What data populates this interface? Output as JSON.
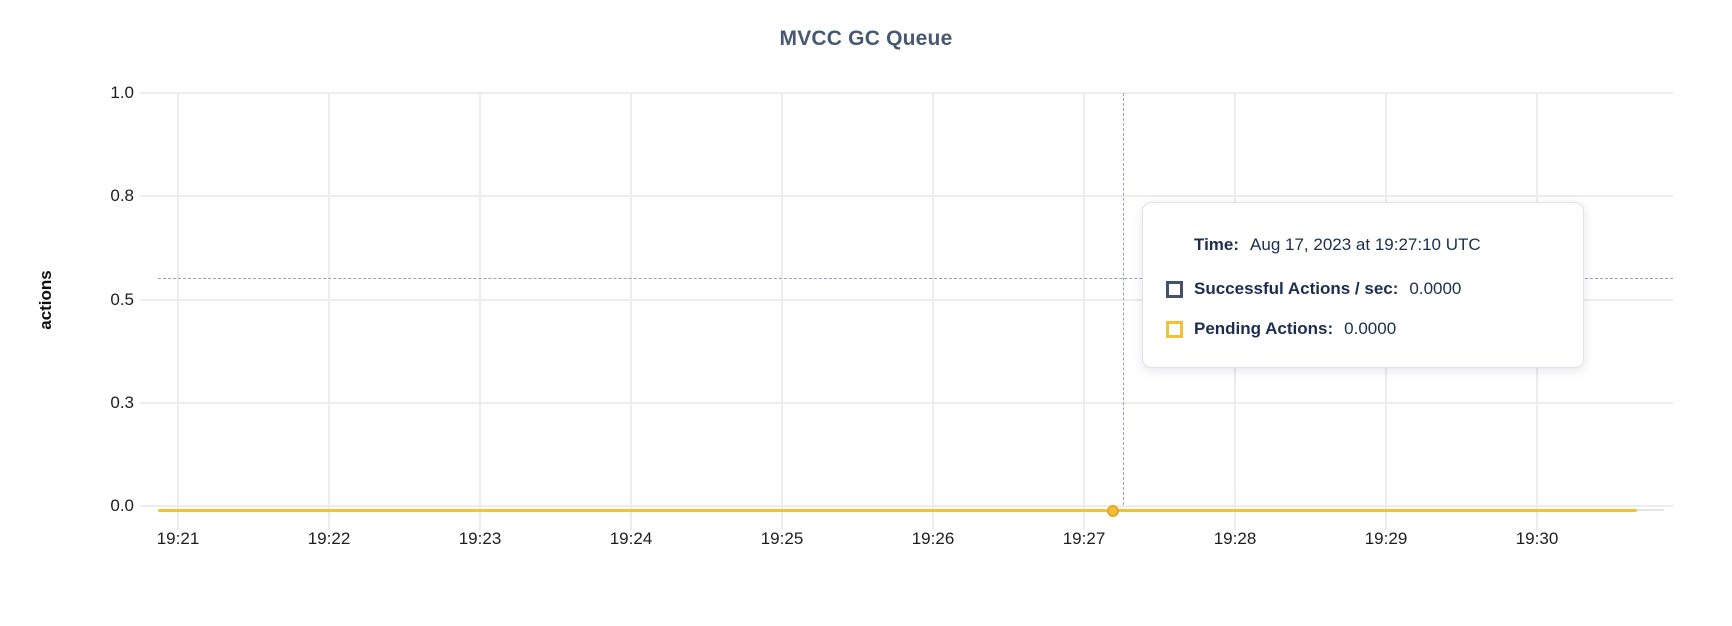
{
  "chart_data": {
    "type": "line",
    "title": "MVCC GC Queue",
    "ylabel": "actions",
    "xlabel": "",
    "ylim": [
      0,
      1
    ],
    "grid": true,
    "x_ticks": [
      "19:21",
      "19:22",
      "19:23",
      "19:24",
      "19:25",
      "19:26",
      "19:27",
      "19:28",
      "19:29",
      "19:30"
    ],
    "y_ticks": [
      {
        "label": "0.0",
        "value": 0
      },
      {
        "label": "0.3",
        "value": 0.25
      },
      {
        "label": "0.5",
        "value": 0.5
      },
      {
        "label": "0.8",
        "value": 0.75
      },
      {
        "label": "1.0",
        "value": 1.0
      }
    ],
    "series": [
      {
        "name": "Successful Actions / sec",
        "color": "#44536b",
        "constant_value": 0
      },
      {
        "name": "Pending Actions",
        "color": "#f1c232",
        "constant_value": 0
      }
    ],
    "hover": {
      "time": "19:27:10",
      "snapped_point_value": 0,
      "cursor_value": 0.55
    },
    "legend_position": "tooltip-only"
  },
  "tooltip": {
    "time_label": "Time:",
    "time_value": "Aug 17, 2023 at 19:27:10 UTC",
    "rows": [
      {
        "swatch_icon": "successful-actions-swatch",
        "swatch_color": "#44536b",
        "label": "Successful Actions / sec:",
        "value": "0.0000"
      },
      {
        "swatch_icon": "pending-actions-swatch",
        "swatch_color": "#f1c232",
        "label": "Pending Actions:",
        "value": "0.0000"
      }
    ]
  },
  "colors": {
    "title": "#475872",
    "pending_series": "#f1c232",
    "successful_series": "#44536b",
    "gridline": "#ededed",
    "crosshair": "#97a3b2",
    "tooltip_text": "#1d2d50"
  }
}
